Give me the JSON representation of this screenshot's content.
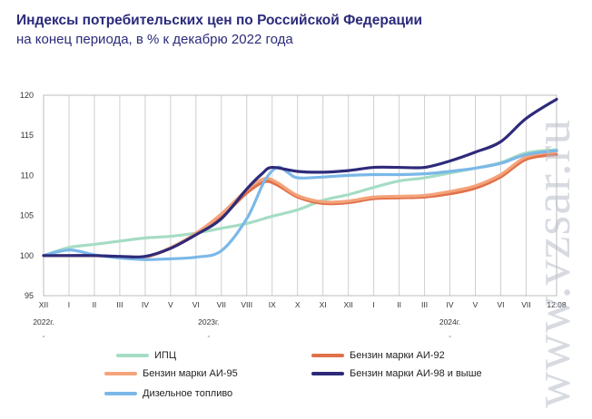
{
  "title": "Индексы потребительских цен по Российской Федерации",
  "subtitle": "на конец периода, в % к декабрю 2022 года",
  "watermark": "www.vzsar.ru",
  "chart_data": {
    "type": "line",
    "ylim": [
      95,
      120
    ],
    "yticks": [
      95,
      100,
      105,
      110,
      115,
      120
    ],
    "grid": "vertical",
    "x_ticks": [
      {
        "t": 0,
        "label": "XII"
      },
      {
        "t": 1,
        "label": "I"
      },
      {
        "t": 2,
        "label": "II"
      },
      {
        "t": 3,
        "label": "III"
      },
      {
        "t": 4,
        "label": "IV"
      },
      {
        "t": 5,
        "label": "V"
      },
      {
        "t": 6,
        "label": "VI"
      },
      {
        "t": 7,
        "label": "VII"
      },
      {
        "t": 8,
        "label": "VIII"
      },
      {
        "t": 9,
        "label": "IX"
      },
      {
        "t": 10,
        "label": "X"
      },
      {
        "t": 11,
        "label": "XI"
      },
      {
        "t": 12,
        "label": "XII"
      },
      {
        "t": 13,
        "label": "I"
      },
      {
        "t": 14,
        "label": "II"
      },
      {
        "t": 15,
        "label": "III"
      },
      {
        "t": 16,
        "label": "IV"
      },
      {
        "t": 17,
        "label": "V"
      },
      {
        "t": 18,
        "label": "VI"
      },
      {
        "t": 19,
        "label": "VII"
      },
      {
        "t": 20.2,
        "label": "12.08"
      }
    ],
    "year_labels": [
      {
        "t": 0,
        "label": "2022г."
      },
      {
        "t": 6.5,
        "label": "2023г."
      },
      {
        "t": 16,
        "label": "2024г."
      }
    ],
    "legend_position": "bottom",
    "series": [
      {
        "name": "ИПЦ",
        "color": "#a6dcc4",
        "points": [
          [
            0,
            100
          ],
          [
            1,
            101
          ],
          [
            2,
            101.4
          ],
          [
            3,
            101.8
          ],
          [
            4,
            102.2
          ],
          [
            5,
            102.4
          ],
          [
            6,
            102.8
          ],
          [
            7,
            103.4
          ],
          [
            8,
            104.0
          ],
          [
            9,
            104.9
          ],
          [
            10,
            105.7
          ],
          [
            11,
            106.9
          ],
          [
            12,
            107.6
          ],
          [
            13,
            108.5
          ],
          [
            14,
            109.3
          ],
          [
            15,
            109.7
          ],
          [
            16,
            110.3
          ],
          [
            17,
            110.9
          ],
          [
            18,
            111.6
          ],
          [
            19,
            112.8
          ],
          [
            20.2,
            113.2
          ]
        ]
      },
      {
        "name": "Бензин марки АИ-92",
        "color": "#e0714a",
        "points": [
          [
            0,
            100
          ],
          [
            1,
            100
          ],
          [
            2,
            100
          ],
          [
            3,
            99.8
          ],
          [
            4,
            99.8
          ],
          [
            5,
            100.9
          ],
          [
            6,
            102.6
          ],
          [
            7,
            104.8
          ],
          [
            8,
            107.8
          ],
          [
            8.7,
            109.2
          ],
          [
            9.2,
            108.8
          ],
          [
            10,
            107.3
          ],
          [
            11,
            106.5
          ],
          [
            12,
            106.6
          ],
          [
            13,
            107.1
          ],
          [
            14,
            107.2
          ],
          [
            15,
            107.3
          ],
          [
            16,
            107.7
          ],
          [
            17,
            108.4
          ],
          [
            18,
            109.8
          ],
          [
            19,
            112.0
          ],
          [
            20.2,
            112.6
          ]
        ]
      },
      {
        "name": "Бензин марки АИ-95",
        "color": "#f4a37a",
        "points": [
          [
            0,
            100
          ],
          [
            1,
            100
          ],
          [
            2,
            100
          ],
          [
            3,
            99.8
          ],
          [
            4,
            99.8
          ],
          [
            5,
            101.0
          ],
          [
            6,
            102.8
          ],
          [
            7,
            105.2
          ],
          [
            8,
            108.2
          ],
          [
            8.7,
            109.6
          ],
          [
            9.2,
            109.1
          ],
          [
            10,
            107.5
          ],
          [
            11,
            106.7
          ],
          [
            12,
            106.8
          ],
          [
            13,
            107.3
          ],
          [
            14,
            107.4
          ],
          [
            15,
            107.5
          ],
          [
            16,
            108.0
          ],
          [
            17,
            108.7
          ],
          [
            18,
            110.1
          ],
          [
            19,
            112.3
          ],
          [
            20.2,
            113.0
          ]
        ]
      },
      {
        "name": "Бензин марки АИ-98 и выше",
        "color": "#2e2a7a",
        "points": [
          [
            0,
            100
          ],
          [
            1,
            100
          ],
          [
            2,
            100
          ],
          [
            3,
            99.9
          ],
          [
            4,
            99.9
          ],
          [
            5,
            100.9
          ],
          [
            6,
            102.6
          ],
          [
            7,
            104.6
          ],
          [
            8,
            108.3
          ],
          [
            8.6,
            110.2
          ],
          [
            9.0,
            111.0
          ],
          [
            10,
            110.5
          ],
          [
            11,
            110.4
          ],
          [
            12,
            110.6
          ],
          [
            13,
            111.0
          ],
          [
            14,
            111.0
          ],
          [
            15,
            111.0
          ],
          [
            16,
            111.8
          ],
          [
            17,
            112.9
          ],
          [
            18,
            114.2
          ],
          [
            19,
            117.1
          ],
          [
            20.2,
            119.5
          ]
        ]
      },
      {
        "name": "Дизельное топливо",
        "color": "#7bb8e8",
        "points": [
          [
            0,
            100
          ],
          [
            1,
            100.7
          ],
          [
            2,
            100.1
          ],
          [
            3,
            99.7
          ],
          [
            4,
            99.5
          ],
          [
            5,
            99.6
          ],
          [
            6,
            99.8
          ],
          [
            7,
            100.6
          ],
          [
            8,
            104.6
          ],
          [
            8.7,
            109.3
          ],
          [
            9.2,
            111.0
          ],
          [
            9.6,
            110.4
          ],
          [
            10,
            109.7
          ],
          [
            11,
            109.8
          ],
          [
            12,
            110.0
          ],
          [
            13,
            110.1
          ],
          [
            14,
            110.1
          ],
          [
            15,
            110.2
          ],
          [
            16,
            110.5
          ],
          [
            17,
            110.9
          ],
          [
            18,
            111.5
          ],
          [
            19,
            112.6
          ],
          [
            20.2,
            113.1
          ]
        ]
      }
    ]
  }
}
